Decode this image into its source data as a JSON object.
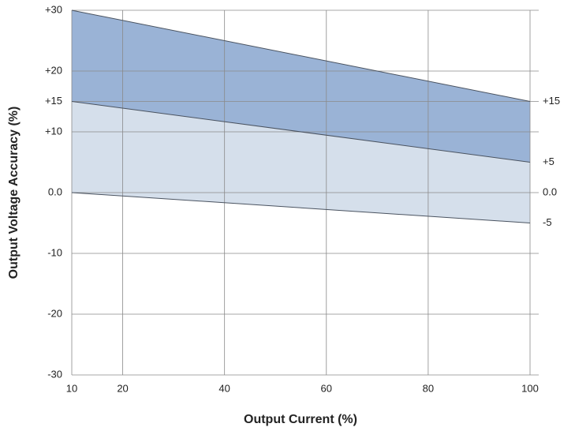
{
  "chart_data": {
    "type": "band",
    "xlabel": "Output Current (%)",
    "ylabel": "Output Voltage Accuracy (%)",
    "x": [
      10,
      100
    ],
    "series": [
      {
        "color": "#4a5360",
        "values": [
          30,
          15
        ]
      },
      {
        "color": "#4a5360",
        "values": [
          15,
          5
        ]
      },
      {
        "color": "#4a5360",
        "values": [
          0,
          -5
        ]
      }
    ],
    "band_colors": [
      "#9ab3d6",
      "#d5dfeb"
    ],
    "xlim": [
      10,
      100
    ],
    "xticks": [
      10,
      20,
      40,
      60,
      80,
      100
    ],
    "ylim": [
      -30,
      30
    ],
    "yticks": [
      {
        "value": 30,
        "label": "+30"
      },
      {
        "value": 20,
        "label": "+20"
      },
      {
        "value": 15,
        "label": "+15"
      },
      {
        "value": 10,
        "label": "+10"
      },
      {
        "value": 0,
        "label": "0.0"
      },
      -10,
      -20,
      -30
    ],
    "y2lim": [
      -30,
      30
    ],
    "y2ticks": [
      {
        "value": 15,
        "label": "+15"
      },
      {
        "value": 5,
        "label": "+5"
      },
      {
        "value": 0,
        "label": "0.0"
      },
      -5
    ],
    "grid": true
  }
}
